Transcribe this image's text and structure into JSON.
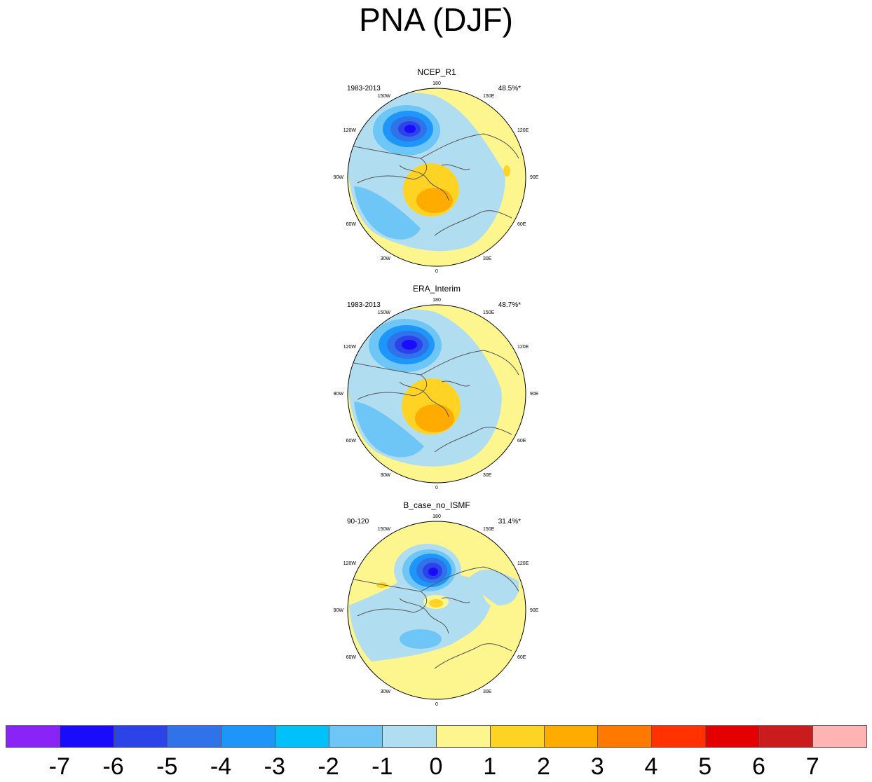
{
  "title": "PNA (DJF)",
  "panels": [
    {
      "name": "NCEP_R1",
      "period": "1983-2013",
      "variance": "48.5%*"
    },
    {
      "name": "ERA_Interim",
      "period": "1983-2013",
      "variance": "48.7%*"
    },
    {
      "name": "B_case_no_ISMF",
      "period": "90-120",
      "variance": "31.4%*"
    }
  ],
  "longitude_labels": {
    "l180": "180",
    "l150e": "150E",
    "l120e": "120E",
    "l90e": "90E",
    "l60e": "60E",
    "l30e": "30E",
    "l0": "0",
    "l30w": "30W",
    "l60w": "60W",
    "l90w": "90W",
    "l120w": "120W",
    "l150w": "150W"
  },
  "colorbar": {
    "labels": [
      "-7",
      "-6",
      "-5",
      "-4",
      "-3",
      "-2",
      "-1",
      "0",
      "1",
      "2",
      "3",
      "4",
      "5",
      "6",
      "7"
    ],
    "colors": [
      "#8a23f5",
      "#1a0cfb",
      "#2c43e8",
      "#2f72ea",
      "#1e96f9",
      "#00c0f9",
      "#6dc6f5",
      "#b1ddf1",
      "#fdf68f",
      "#ffd323",
      "#ffab00",
      "#ff7800",
      "#ff3200",
      "#e40000",
      "#ca1c1c",
      "#ffb3b3"
    ]
  }
}
